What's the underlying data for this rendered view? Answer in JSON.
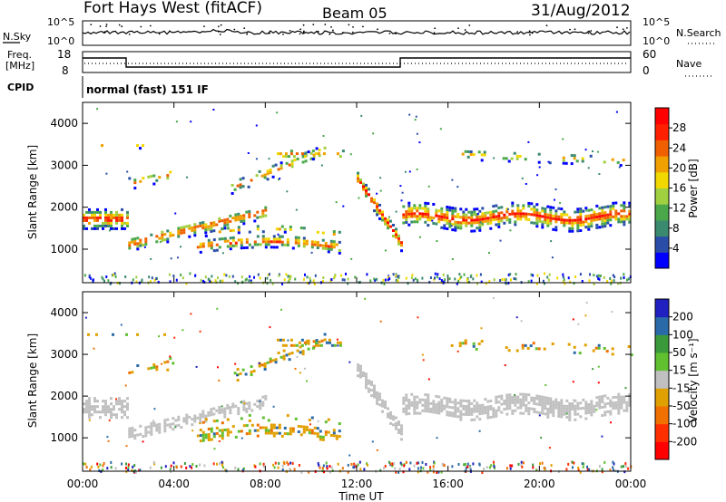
{
  "header": {
    "radar": "Fort Hays West (fitACF)",
    "beam": "Beam 05",
    "date": "31/Aug/2012"
  },
  "colors": {
    "scatter_gray": "#c0c0c0",
    "ground_scatter_hint": "ground scatter shown in gray"
  },
  "aux_panels": {
    "nsky_label": "N.Sky",
    "nsky_ticks": [
      "10^5",
      "10^0"
    ],
    "nsearch_label": "N.Search",
    "nsearch_ticks": [
      "10^5",
      "10^0"
    ],
    "freq_label_1": "Freq.",
    "freq_label_2": "[MHz]",
    "freq_ticks": [
      "18",
      "8"
    ],
    "nave_label": "Nave",
    "nave_ticks": [
      "60",
      "0"
    ],
    "cpid_label": "CPID",
    "cpid_text": "normal (fast) 151 IF"
  },
  "chart_data": [
    {
      "type": "heatmap",
      "title": "",
      "ylabel": "Slant Range [km]",
      "xlabel": "",
      "x_ticks": [
        "00:00",
        "04:00",
        "08:00",
        "12:00",
        "16:00",
        "20:00",
        "00:00"
      ],
      "y_ticks": [
        1000,
        2000,
        3000,
        4000
      ],
      "ylim": [
        200,
        4500
      ],
      "xlim_hours": [
        0,
        24
      ],
      "colorbar": {
        "label": "Power [dB]",
        "ticks": [
          4,
          8,
          12,
          16,
          20,
          24,
          28
        ],
        "colors": [
          "#0000ff",
          "#2a4ea8",
          "#3a8a70",
          "#4aa84a",
          "#a0d040",
          "#f0d800",
          "#f0a000",
          "#f06000",
          "#ff2000",
          "#ff0000"
        ]
      }
    },
    {
      "type": "heatmap",
      "title": "",
      "ylabel": "Slant Range [km]",
      "xlabel": "Time UT",
      "x_ticks": [
        "00:00",
        "04:00",
        "08:00",
        "12:00",
        "16:00",
        "20:00",
        "00:00"
      ],
      "y_ticks": [
        1000,
        2000,
        3000,
        4000
      ],
      "ylim": [
        200,
        4500
      ],
      "xlim_hours": [
        0,
        24
      ],
      "colorbar": {
        "label": "Velocity [m s⁻¹]",
        "ticks": [
          200,
          100,
          50,
          15,
          -15,
          -50,
          -100,
          -200
        ],
        "colors": [
          "#2020c0",
          "#2a6aa8",
          "#3a9a3a",
          "#60c030",
          "#c0c0c0",
          "#e0a000",
          "#f07000",
          "#ff3000",
          "#ff0000"
        ]
      }
    }
  ]
}
